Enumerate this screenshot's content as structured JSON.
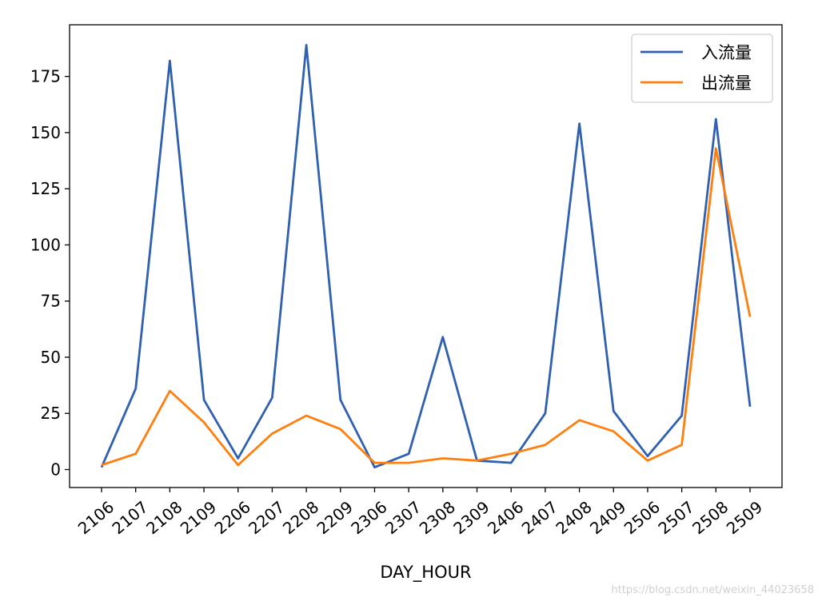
{
  "chart_data": {
    "type": "line",
    "title": "",
    "xlabel": "DAY_HOUR",
    "ylabel": "",
    "categories": [
      "2106",
      "2107",
      "2108",
      "2109",
      "2206",
      "2207",
      "2208",
      "2209",
      "2306",
      "2307",
      "2308",
      "2309",
      "2406",
      "2407",
      "2408",
      "2409",
      "2506",
      "2507",
      "2508",
      "2509"
    ],
    "series": [
      {
        "name": "入流量",
        "color": "#3060b0",
        "values": [
          1,
          36,
          182,
          31,
          5,
          32,
          189,
          31,
          1,
          7,
          59,
          4,
          3,
          25,
          154,
          26,
          6,
          24,
          156,
          28
        ]
      },
      {
        "name": "出流量",
        "color": "#ff7f0e",
        "values": [
          2,
          7,
          35,
          21,
          2,
          16,
          24,
          18,
          3,
          3,
          5,
          4,
          7,
          11,
          22,
          17,
          4,
          11,
          143,
          68
        ]
      }
    ],
    "ylim": [
      -8,
      198
    ],
    "yticks": [
      0,
      25,
      50,
      75,
      100,
      125,
      150,
      175
    ],
    "yticklabels": [
      "0",
      "25",
      "50",
      "75",
      "100",
      "125",
      "150",
      "175"
    ],
    "legend_position": "top-right",
    "grid": false
  },
  "watermark": "https://blog.csdn.net/weixin_44023658"
}
